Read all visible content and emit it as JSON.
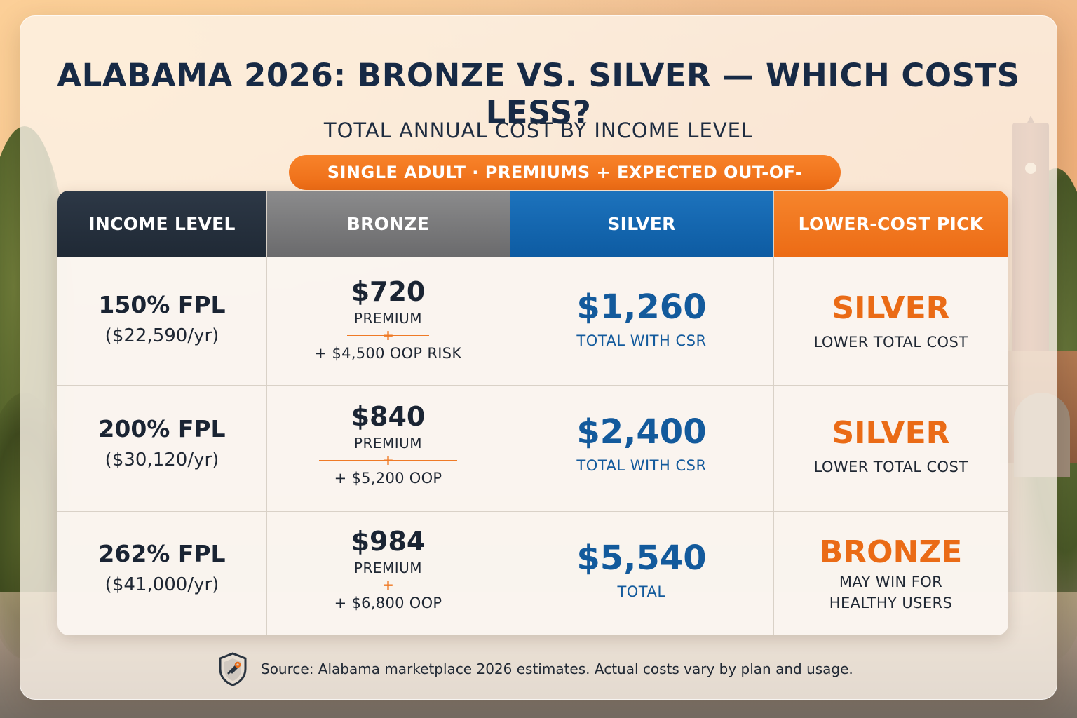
{
  "title": "ALABAMA 2026: BRONZE VS. SILVER — WHICH COSTS LESS?",
  "subtitle": "TOTAL ANNUAL COST BY INCOME LEVEL",
  "pill": "SINGLE ADULT · PREMIUMS + EXPECTED OUT-OF-POCKET",
  "headers": {
    "income": "INCOME LEVEL",
    "bronze": "BRONZE",
    "silver": "SILVER",
    "pick": "LOWER-COST PICK"
  },
  "rows": [
    {
      "income_pct": "150% FPL",
      "income_amt": "($22,590/yr)",
      "bronze_price": "$720",
      "bronze_label": "PREMIUM",
      "bronze_oop": "+ $4,500 OOP RISK",
      "silver_price": "$1,260",
      "silver_label": "TOTAL WITH CSR",
      "pick_name": "SILVER",
      "pick_label": "LOWER TOTAL COST"
    },
    {
      "income_pct": "200% FPL",
      "income_amt": "($30,120/yr)",
      "bronze_price": "$840",
      "bronze_label": "PREMIUM",
      "bronze_oop": "+ $5,200 OOP",
      "silver_price": "$2,400",
      "silver_label": "TOTAL WITH CSR",
      "pick_name": "SILVER",
      "pick_label": "LOWER TOTAL COST"
    },
    {
      "income_pct": "262% FPL",
      "income_amt": "($41,000/yr)",
      "bronze_price": "$984",
      "bronze_label": "PREMIUM",
      "bronze_oop": "+ $6,800 OOP",
      "silver_price": "$5,540",
      "silver_label": "TOTAL",
      "pick_name": "BRONZE",
      "pick_label": "MAY WIN FOR\nHEALTHY USERS"
    }
  ],
  "plus_sign": "+",
  "footer": "Source: Alabama marketplace 2026 estimates. Actual costs vary by plan and usage.",
  "icons": {
    "footer": "shield-icon"
  },
  "colors": {
    "navy": "#172a45",
    "orange": "#ec6b15",
    "blue": "#135a9c",
    "gray": "#6a6a6c"
  }
}
